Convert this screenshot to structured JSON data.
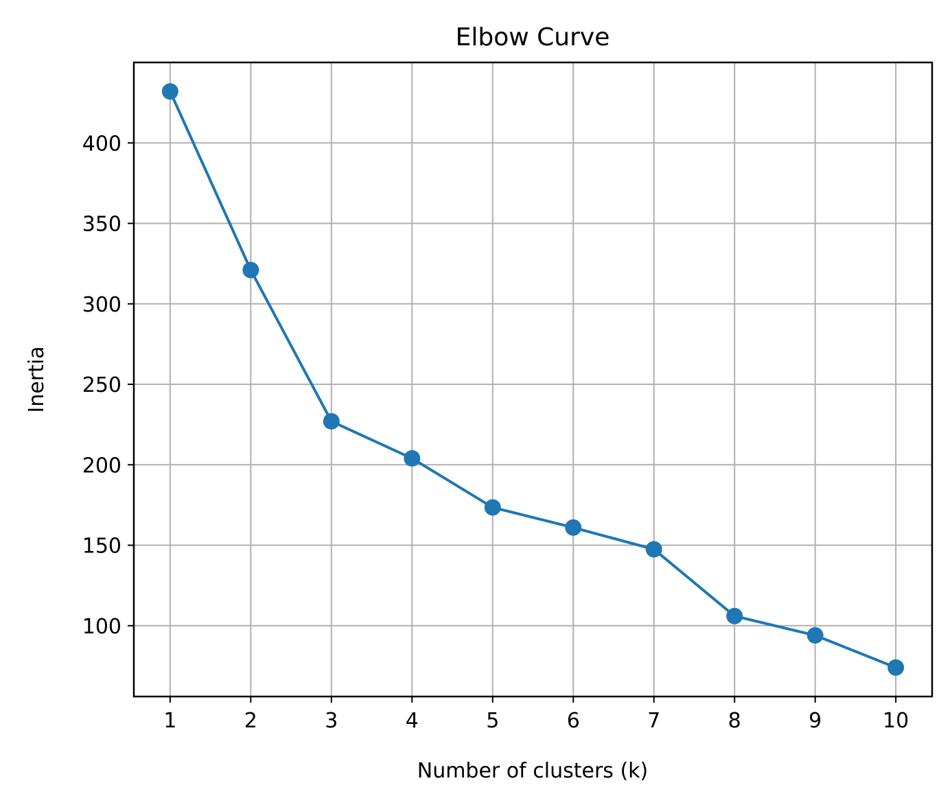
{
  "chart_data": {
    "type": "line",
    "title": "Elbow Curve",
    "xlabel": "Number of clusters (k)",
    "ylabel": "Inertia",
    "x": [
      1,
      2,
      3,
      4,
      5,
      6,
      7,
      8,
      9,
      10
    ],
    "series": [
      {
        "values": [
          432,
          321,
          227,
          204,
          173.5,
          161,
          147.5,
          106,
          94,
          74
        ],
        "color": "#1f77b4",
        "marker": "circle"
      }
    ],
    "xticks": [
      "1",
      "2",
      "3",
      "4",
      "5",
      "6",
      "7",
      "8",
      "9",
      "10"
    ],
    "yticks": [
      "100",
      "150",
      "200",
      "250",
      "300",
      "350",
      "400"
    ],
    "xlim": [
      0.55,
      10.45
    ],
    "ylim": [
      56,
      450
    ],
    "grid": true,
    "legend": "none"
  }
}
